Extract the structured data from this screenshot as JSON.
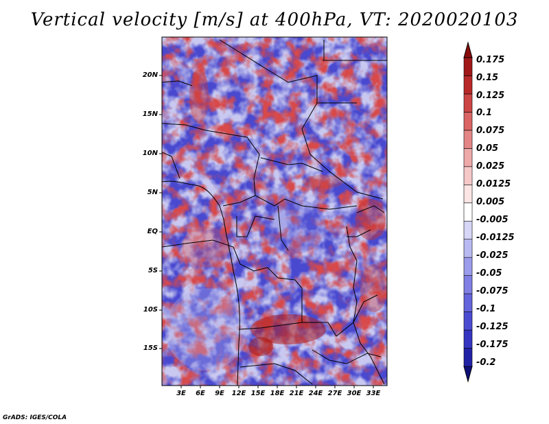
{
  "title": "Vertical velocity [m/s] at 400hPa, VT: 2020020103",
  "credit": "GrADS: IGES/COLA",
  "map": {
    "lat_labels": [
      "20N",
      "15N",
      "10N",
      "5N",
      "EQ",
      "5S",
      "10S",
      "15S"
    ],
    "lon_labels": [
      "3E",
      "6E",
      "9E",
      "12E",
      "15E",
      "18E",
      "21E",
      "24E",
      "27E",
      "30E",
      "33E"
    ]
  },
  "colorbar": {
    "labels": [
      "0.175",
      "0.15",
      "0.125",
      "0.1",
      "0.075",
      "0.05",
      "0.025",
      "0.0125",
      "0.005",
      "-0.005",
      "-0.0125",
      "-0.025",
      "-0.05",
      "-0.075",
      "-0.1",
      "-0.125",
      "-0.175",
      "-0.2"
    ],
    "colors": [
      "#0f0f78",
      "#2222a6",
      "#3535c2",
      "#4b4bd2",
      "#6464dc",
      "#7f7fe4",
      "#9c9cec",
      "#b9b9f2",
      "#d6d6f7",
      "#ffffff",
      "#fbe4e4",
      "#f6c8c8",
      "#eea9a9",
      "#e48686",
      "#da6464",
      "#cc4444",
      "#b82828",
      "#a01818",
      "#8a0a0a"
    ]
  }
}
